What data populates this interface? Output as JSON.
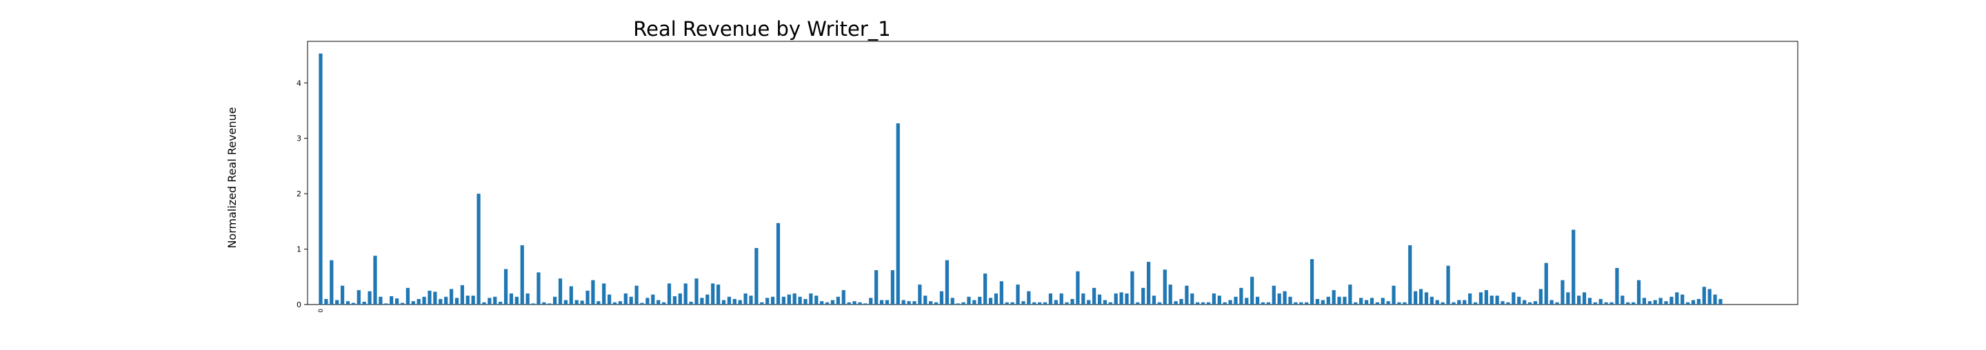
{
  "chart_data": {
    "type": "bar",
    "title": "Real Revenue by Writer_1",
    "xlabel": "",
    "ylabel": "Normalized Real Revenue",
    "ylim": [
      0,
      4.75
    ],
    "yticks": [
      0,
      1,
      2,
      3,
      4
    ],
    "grid": false,
    "bar_color": "#1f77b4",
    "first_category": "0",
    "values": [
      4.53,
      0.1,
      0.8,
      0.08,
      0.34,
      0.06,
      0.03,
      0.26,
      0.05,
      0.24,
      0.88,
      0.14,
      0.02,
      0.15,
      0.11,
      0.03,
      0.3,
      0.06,
      0.1,
      0.14,
      0.25,
      0.23,
      0.1,
      0.14,
      0.28,
      0.12,
      0.35,
      0.16,
      0.16,
      2.0,
      0.04,
      0.12,
      0.14,
      0.05,
      0.64,
      0.2,
      0.14,
      1.07,
      0.2,
      0.02,
      0.58,
      0.04,
      0.02,
      0.14,
      0.47,
      0.08,
      0.33,
      0.08,
      0.07,
      0.25,
      0.44,
      0.06,
      0.38,
      0.18,
      0.04,
      0.06,
      0.2,
      0.14,
      0.34,
      0.03,
      0.12,
      0.18,
      0.08,
      0.04,
      0.38,
      0.15,
      0.2,
      0.38,
      0.05,
      0.47,
      0.12,
      0.18,
      0.38,
      0.36,
      0.08,
      0.14,
      0.1,
      0.08,
      0.2,
      0.16,
      1.02,
      0.04,
      0.12,
      0.14,
      1.47,
      0.14,
      0.18,
      0.2,
      0.14,
      0.1,
      0.2,
      0.16,
      0.06,
      0.04,
      0.08,
      0.14,
      0.26,
      0.04,
      0.06,
      0.04,
      0.02,
      0.12,
      0.62,
      0.08,
      0.08,
      0.62,
      3.27,
      0.08,
      0.06,
      0.06,
      0.36,
      0.16,
      0.06,
      0.04,
      0.24,
      0.8,
      0.12,
      0.02,
      0.04,
      0.14,
      0.08,
      0.14,
      0.56,
      0.12,
      0.2,
      0.42,
      0.04,
      0.04,
      0.36,
      0.06,
      0.24,
      0.04,
      0.04,
      0.04,
      0.2,
      0.08,
      0.2,
      0.04,
      0.1,
      0.6,
      0.2,
      0.08,
      0.3,
      0.18,
      0.08,
      0.04,
      0.2,
      0.22,
      0.2,
      0.6,
      0.04,
      0.3,
      0.77,
      0.16,
      0.04,
      0.63,
      0.36,
      0.06,
      0.1,
      0.34,
      0.2,
      0.04,
      0.04,
      0.04,
      0.2,
      0.16,
      0.04,
      0.08,
      0.14,
      0.3,
      0.12,
      0.5,
      0.14,
      0.04,
      0.04,
      0.34,
      0.2,
      0.24,
      0.14,
      0.04,
      0.04,
      0.04,
      0.82,
      0.1,
      0.08,
      0.14,
      0.26,
      0.14,
      0.14,
      0.36,
      0.04,
      0.12,
      0.08,
      0.12,
      0.04,
      0.12,
      0.06,
      0.34,
      0.04,
      0.04,
      1.07,
      0.24,
      0.28,
      0.22,
      0.14,
      0.08,
      0.04,
      0.7,
      0.04,
      0.08,
      0.08,
      0.2,
      0.04,
      0.22,
      0.26,
      0.16,
      0.16,
      0.06,
      0.04,
      0.22,
      0.14,
      0.08,
      0.04,
      0.06,
      0.28,
      0.75,
      0.08,
      0.04,
      0.44,
      0.22,
      1.35,
      0.16,
      0.22,
      0.12,
      0.04,
      0.1,
      0.04,
      0.04,
      0.66,
      0.16,
      0.04,
      0.04,
      0.44,
      0.12,
      0.06,
      0.08,
      0.12,
      0.06,
      0.14,
      0.22,
      0.18,
      0.04,
      0.08,
      0.1,
      0.32,
      0.28,
      0.18,
      0.1
    ]
  }
}
